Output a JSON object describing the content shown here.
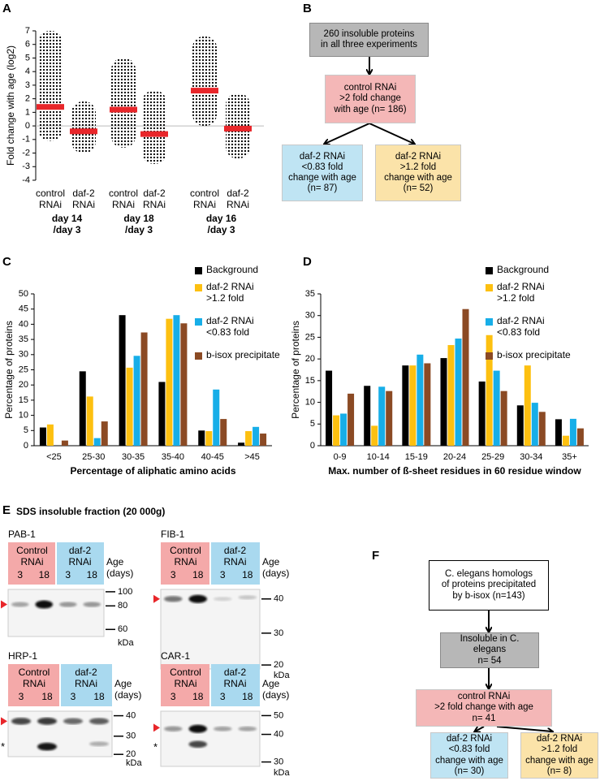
{
  "panel_labels": [
    "A",
    "B",
    "C",
    "D",
    "E",
    "F"
  ],
  "chart_data": [
    {
      "type": "strip",
      "y_label": "Fold change with age (log2)",
      "categories": [
        "control\nRNAi",
        "daf-2\nRNAi",
        "control\nRNAi",
        "daf-2\nRNAi",
        "control\nRNAi",
        "daf-2\nRNAi"
      ],
      "group_labels": [
        "day 14\n/day 3",
        "day 18\n/day 3",
        "day 16\n/day 3"
      ],
      "values": [
        1.4,
        -0.4,
        1.2,
        -0.6,
        2.6,
        -0.2
      ],
      "lows": [
        -1.1,
        -2.0,
        -1.6,
        -2.8,
        0.0,
        -2.4
      ],
      "highs": [
        7.0,
        1.8,
        5.0,
        2.6,
        6.6,
        2.4
      ],
      "color": "#000000",
      "median_color": "#e8262a",
      "ylim": [
        -4,
        7
      ],
      "yticks": [
        -4,
        -3,
        -2,
        -1,
        0,
        1,
        2,
        3,
        4,
        5,
        6,
        7
      ]
    },
    {
      "type": "bar",
      "y_label": "Percentage of proteins",
      "x_label": "Percentage of aliphatic amino acids",
      "categories": [
        "<25",
        "25-30",
        "30-35",
        "35-40",
        "40-45",
        ">45"
      ],
      "series": [
        {
          "name": "Background",
          "color": "#000000",
          "values": [
            6,
            24.5,
            43,
            21,
            5,
            1
          ]
        },
        {
          "name": "daf-2 RNAi\n>1.2 fold",
          "color": "#fdc010",
          "values": [
            7,
            16.2,
            25.7,
            41.8,
            4.8,
            4.8
          ]
        },
        {
          "name": "daf-2 RNAi\n<0.83 fold",
          "color": "#17aee8",
          "values": [
            0,
            2.5,
            29.6,
            43,
            18.5,
            6.2
          ]
        },
        {
          "name": "b-isox precipitate",
          "color": "#8b4a24",
          "values": [
            1.7,
            8,
            37.3,
            40.3,
            8.8,
            4
          ]
        }
      ],
      "ylim": [
        0,
        50
      ],
      "yticks": [
        0,
        5,
        10,
        15,
        20,
        25,
        30,
        35,
        40,
        45,
        50
      ]
    },
    {
      "type": "bar",
      "y_label": "Percentage of proteins",
      "x_label": "Max. number of ß-sheet residues in 60 residue window",
      "categories": [
        "0-9",
        "10-14",
        "15-19",
        "20-24",
        "25-29",
        "30-34",
        "35+"
      ],
      "series": [
        {
          "name": "Background",
          "color": "#000000",
          "values": [
            17.3,
            13.8,
            18.5,
            20.2,
            14.8,
            9.3,
            6.1
          ]
        },
        {
          "name": "daf-2 RNAi\n>1.2 fold",
          "color": "#fdc010",
          "values": [
            7,
            4.6,
            18.5,
            23.2,
            25.5,
            18.5,
            2.3
          ]
        },
        {
          "name": "daf-2 RNAi\n<0.83 fold",
          "color": "#17aee8",
          "values": [
            7.4,
            13.6,
            21,
            24.7,
            17.3,
            9.9,
            6.2
          ]
        },
        {
          "name": "b-isox precipitate",
          "color": "#8b4a24",
          "values": [
            12,
            12.6,
            19,
            31.5,
            12.6,
            7.8,
            4
          ]
        }
      ],
      "ylim": [
        0,
        35
      ],
      "yticks": [
        0,
        5,
        10,
        15,
        20,
        25,
        30,
        35
      ]
    }
  ],
  "flow_b": [
    "260 insoluble proteins\nin all three experiments",
    "control RNAi\n>2 fold change\nwith age (n= 186)",
    "daf-2 RNAi\n<0.83 fold\nchange with age\n(n= 87)",
    "daf-2 RNAi\n>1.2 fold\nchange with age\n(n= 52)"
  ],
  "blots": {
    "title": "SDS insoluble fraction (20 000g)",
    "items": [
      {
        "name": "PAB-1",
        "groups": [
          "Control\nRNAi",
          "daf-2\nRNAi"
        ],
        "lanes": [
          "3",
          "18",
          "3",
          "18"
        ],
        "age_label": "Age\n(days)",
        "markers": [
          100,
          80,
          60
        ],
        "unit": "kDa"
      },
      {
        "name": "FIB-1",
        "groups": [
          "Control\nRNAi",
          "daf-2\nRNAi"
        ],
        "lanes": [
          "3",
          "18",
          "3",
          "18"
        ],
        "age_label": "Age\n(days)",
        "markers": [
          40,
          30,
          20
        ],
        "unit": "kDa"
      },
      {
        "name": "HRP-1",
        "groups": [
          "Control\nRNAi",
          "daf-2\nRNAi"
        ],
        "lanes": [
          "3",
          "18",
          "3",
          "18"
        ],
        "age_label": "Age\n(days)",
        "markers": [
          40,
          30,
          20
        ],
        "unit": "kDa",
        "annotation": "*"
      },
      {
        "name": "CAR-1",
        "groups": [
          "Control\nRNAi",
          "daf-2\nRNAi"
        ],
        "lanes": [
          "3",
          "18",
          "3",
          "18"
        ],
        "age_label": "Age\n(days)",
        "markers": [
          50,
          40,
          30
        ],
        "unit": "kDa",
        "annotation": "*"
      }
    ]
  },
  "flow_f": [
    "C. elegans homologs\nof proteins precipitated\nby b-isox (n=143)",
    "Insoluble in C. elegans\nn= 54",
    "control RNAi\n>2 fold change with age\nn= 41",
    "daf-2 RNAi\n<0.83 fold\nchange with age\n(n= 30)",
    "daf-2 RNAi\n>1.2 fold\nchange with age\n(n= 8)"
  ]
}
